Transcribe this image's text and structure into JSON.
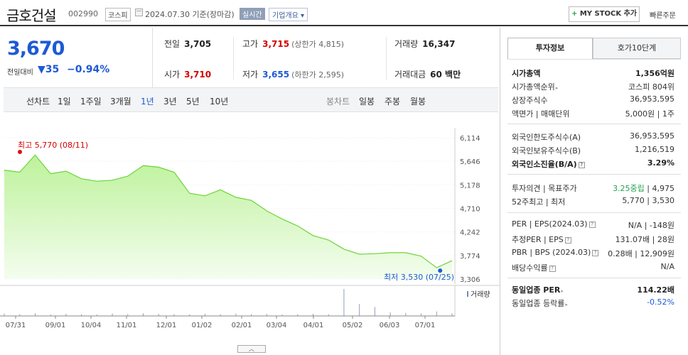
{
  "header": {
    "name": "금호건설",
    "code": "002990",
    "market": "코스피",
    "date": "2024.07.30 기준(장마감)",
    "realtime": "실시간",
    "overview": "기업개요 ▾",
    "mystock_plus": "+",
    "mystock_label": "MY STOCK 추가",
    "quick_order": "빠른주문"
  },
  "price": {
    "current": "3,670",
    "diff_label": "전일대비",
    "diff_arrow": "▼",
    "diff": "35",
    "rate": "−0.94%"
  },
  "stats": {
    "prev_label": "전일",
    "prev": "3,705",
    "high_label": "고가",
    "high": "3,715",
    "high_limit": "(상한가 4,815)",
    "volume_label": "거래량",
    "volume": "16,347",
    "open_label": "시가",
    "open": "3,710",
    "low_label": "저가",
    "low": "3,655",
    "low_limit": "(하한가 2,595)",
    "amount_label": "거래대금",
    "amount": "60 백만"
  },
  "tabs": {
    "line": "선차트",
    "periods": [
      "1일",
      "1주일",
      "3개월",
      "1년",
      "3년",
      "5년",
      "10년"
    ],
    "candle": "봉차트",
    "candle_periods": [
      "일봉",
      "주봉",
      "월봉"
    ]
  },
  "chart_data": {
    "type": "area",
    "x": [
      "07/31",
      "08/07",
      "08/11",
      "08/21",
      "09/01",
      "09/14",
      "10/04",
      "10/20",
      "11/01",
      "11/15",
      "12/01",
      "12/15",
      "01/02",
      "01/15",
      "02/01",
      "02/15",
      "03/04",
      "03/20",
      "04/01",
      "04/15",
      "05/02",
      "05/16",
      "06/03",
      "06/10",
      "06/24",
      "07/01",
      "07/10",
      "07/15",
      "07/25",
      "07/30"
    ],
    "y": [
      5470,
      5430,
      5770,
      5400,
      5450,
      5300,
      5250,
      5270,
      5350,
      5560,
      5530,
      5430,
      5010,
      4960,
      5080,
      4930,
      4870,
      4660,
      4500,
      4360,
      4170,
      4080,
      3900,
      3800,
      3810,
      3830,
      3830,
      3760,
      3530,
      3670
    ],
    "yticks": [
      "6,114",
      "5,646",
      "5,178",
      "4,710",
      "4,242",
      "3,774",
      "3,306"
    ],
    "ylim": [
      3306,
      6114
    ],
    "xticks": [
      "07/31",
      "09/01",
      "10/04",
      "11/01",
      "12/01",
      "01/02",
      "02/01",
      "03/04",
      "04/01",
      "05/02",
      "06/03",
      "07/01"
    ],
    "max_label": "최고 5,770 (08/11)",
    "min_label": "최저 3,530 (07/25)",
    "volume_label": "거래량",
    "volume": [
      8,
      6,
      9,
      5,
      7,
      6,
      5,
      8,
      6,
      9,
      7,
      6,
      5,
      7,
      6,
      8,
      6,
      7,
      5,
      6,
      7,
      6,
      90,
      40,
      30,
      12,
      10,
      8,
      15,
      9
    ]
  },
  "side": {
    "tab_invest": "투자정보",
    "tab_hoga": "호가10단계",
    "rows1": [
      {
        "k": "시가총액",
        "v": "1,356억원",
        "bold": true
      },
      {
        "k": "시가총액순위",
        "v": "코스피 804위",
        "tri": true
      },
      {
        "k": "상장주식수",
        "v": "36,953,595"
      },
      {
        "k": "액면가 | 매매단위",
        "v": "5,000원 | 1주"
      }
    ],
    "rows2": [
      {
        "k": "외국인한도주식수(A)",
        "v": "36,953,595"
      },
      {
        "k": "외국인보유주식수(B)",
        "v": "1,216,519"
      },
      {
        "k": "외국인소진율(B/A)",
        "v": "3.29%",
        "bold": true,
        "q": true
      }
    ],
    "rows3": [
      {
        "k": "투자의견 | 목표주가",
        "v1": "3.25중립",
        "v2": "| 4,975"
      },
      {
        "k": "52주최고 | 최저",
        "v": "5,770 | 3,530"
      }
    ],
    "rows4": [
      {
        "k": "PER | EPS(2024.03)",
        "v": "N/A | -148원",
        "q": true
      },
      {
        "k": "추정PER | EPS",
        "v": "131.07배 | 28원",
        "q": true
      },
      {
        "k": "PBR | BPS (2024.03)",
        "v": "0.28배 | 12,909원",
        "q": true
      },
      {
        "k": "배당수익률",
        "v": "N/A",
        "q": true
      }
    ],
    "rows5": [
      {
        "k": "동일업종 PER",
        "v": "114.22배",
        "bold": true,
        "tri": true
      },
      {
        "k": "동일업종 등락률",
        "v": "-0.52%",
        "tri": true,
        "blue": true
      }
    ]
  }
}
